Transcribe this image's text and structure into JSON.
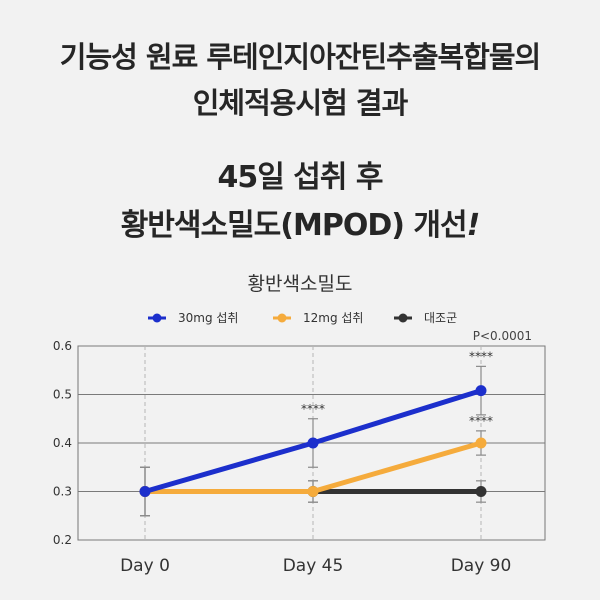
{
  "headline": {
    "line1": "기능성 원료 루테인지아잔틴추출복합물의",
    "line2": "인체적용시험 결과",
    "line3": "45일 섭취 후",
    "line4_main": "황반색소밀도(MPOD) 개선",
    "line4_excl": "!"
  },
  "chart_data": {
    "type": "line",
    "title": "황반색소밀도",
    "categories": [
      "Day 0",
      "Day 45",
      "Day 90"
    ],
    "ylim": [
      0.2,
      0.6
    ],
    "yticks": [
      "0.2",
      "0.3",
      "0.4",
      "0.5",
      "0.6"
    ],
    "yticks_values": [
      0.2,
      0.3,
      0.4,
      0.5,
      0.6
    ],
    "grid": true,
    "legend_position": "top",
    "p_note": "P<0.0001",
    "series": [
      {
        "name": "대조군",
        "color": "#333333",
        "values": [
          0.3,
          0.3,
          0.3
        ],
        "err": [
          0.05,
          0.022,
          0.022
        ],
        "sig": [
          "",
          "",
          ""
        ]
      },
      {
        "name": "12mg 섭취",
        "color": "#f5ab3c",
        "values": [
          0.3,
          0.3,
          0.4
        ],
        "err": [
          0.05,
          0.022,
          0.025
        ],
        "sig": [
          "",
          "",
          "****"
        ]
      },
      {
        "name": "30mg 섭취",
        "color": "#1c2fcc",
        "values": [
          0.3,
          0.4,
          0.508
        ],
        "err": [
          0.05,
          0.05,
          0.05
        ],
        "sig": [
          "",
          "****",
          "****"
        ]
      }
    ],
    "legend_order": [
      "30mg 섭취",
      "12mg 섭취",
      "대조군"
    ]
  }
}
